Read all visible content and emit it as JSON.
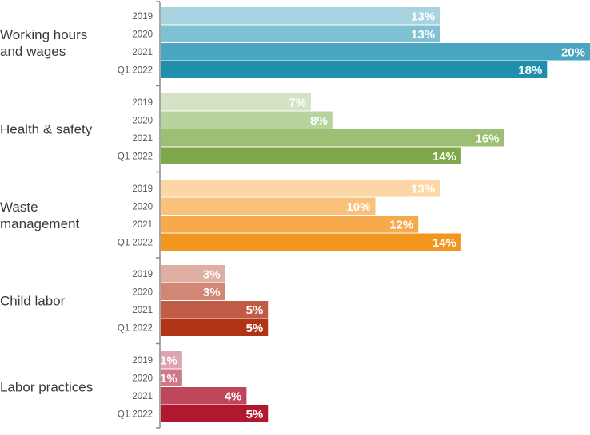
{
  "chart_data": {
    "type": "bar",
    "orientation": "horizontal",
    "value_format": "percent",
    "xlim": [
      0,
      20
    ],
    "grid": false,
    "legend": "none",
    "periods": [
      "2019",
      "2020",
      "2021",
      "Q1 2022"
    ],
    "groups": [
      {
        "label_lines": [
          "Working hours",
          "and wages"
        ],
        "values": [
          13,
          13,
          20,
          18
        ],
        "value_labels": [
          "13%",
          "13%",
          "20%",
          "18%"
        ],
        "colors": [
          "#a8d4e1",
          "#7fc1d3",
          "#4aa6c0",
          "#1f8fac"
        ]
      },
      {
        "label_lines": [
          "Health & safety"
        ],
        "values": [
          7,
          8,
          16,
          14
        ],
        "value_labels": [
          "7%",
          "8%",
          "16%",
          "14%"
        ],
        "colors": [
          "#d3e3c4",
          "#b7d49f",
          "#9cbf73",
          "#7ea849"
        ]
      },
      {
        "label_lines": [
          "Waste",
          "management"
        ],
        "values": [
          13,
          10,
          12,
          14
        ],
        "value_labels": [
          "13%",
          "10%",
          "12%",
          "14%"
        ],
        "colors": [
          "#fcd6a5",
          "#f9c17a",
          "#f6aa4c",
          "#f3961f"
        ]
      },
      {
        "label_lines": [
          "Child labor"
        ],
        "values": [
          3,
          3,
          5,
          5
        ],
        "value_labels": [
          "3%",
          "3%",
          "5%",
          "5%"
        ],
        "colors": [
          "#dfafa4",
          "#d18676",
          "#c25b45",
          "#b23417"
        ]
      },
      {
        "label_lines": [
          "Labor practices"
        ],
        "values": [
          1,
          1,
          4,
          5
        ],
        "value_labels": [
          "1%",
          "1%",
          "4%",
          "5%"
        ],
        "colors": [
          "#dca5b1",
          "#cf7887",
          "#c0465b",
          "#b21730"
        ]
      }
    ]
  }
}
